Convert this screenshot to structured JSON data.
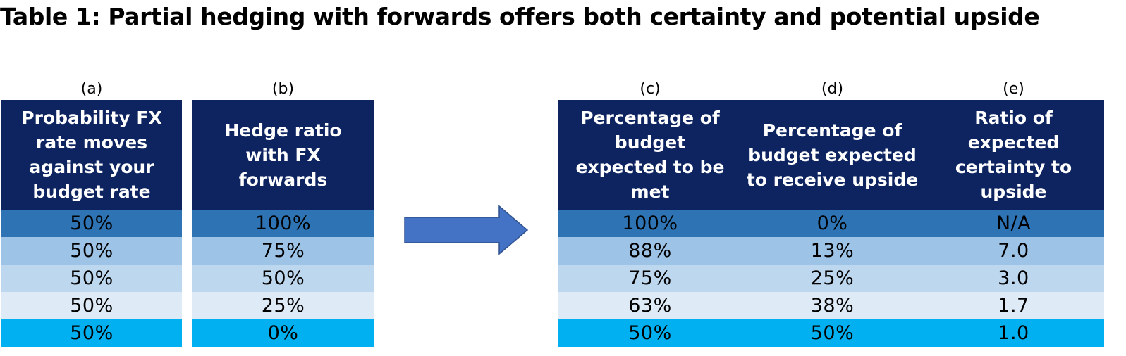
{
  "title": "Table 1: Partial hedging with forwards offers both certainty and potential upside",
  "row_colors": [
    "#2e74b5",
    "#9dc3e6",
    "#bdd7ee",
    "#deebf7",
    "#00b0f0"
  ],
  "header_color": "#0d2461",
  "arrow_color": "#4472c4",
  "columns": [
    {
      "letter": "(a)",
      "header": "Probability FX rate moves against your budget rate",
      "values": [
        "50%",
        "50%",
        "50%",
        "50%",
        "50%"
      ]
    },
    {
      "letter": "(b)",
      "header": "Hedge ratio with FX forwards",
      "values": [
        "100%",
        "75%",
        "50%",
        "25%",
        "0%"
      ]
    },
    {
      "letter": "(c)",
      "header": "Percentage of budget expected to be met",
      "values": [
        "100%",
        "88%",
        "75%",
        "63%",
        "50%"
      ]
    },
    {
      "letter": "(d)",
      "header": "Percentage of budget expected to receive upside",
      "values": [
        "0%",
        "13%",
        "25%",
        "38%",
        "50%"
      ]
    },
    {
      "letter": "(e)",
      "header": "Ratio of expected certainty to upside",
      "values": [
        "N/A",
        "7.0",
        "3.0",
        "1.7",
        "1.0"
      ]
    }
  ]
}
